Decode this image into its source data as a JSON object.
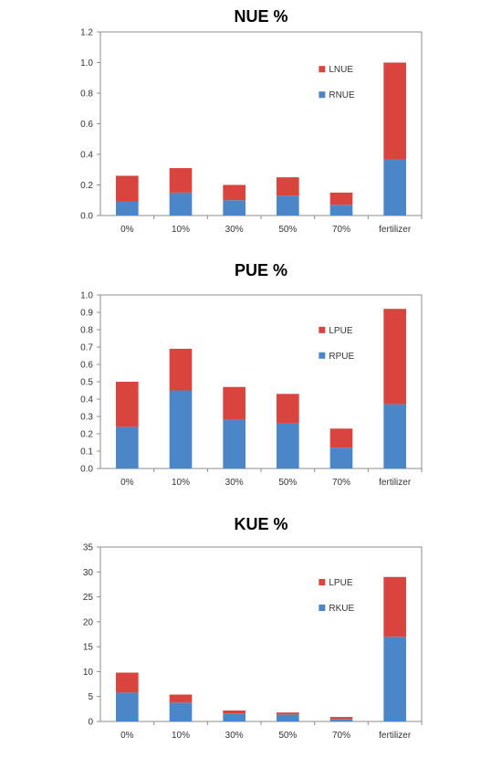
{
  "chart_data": [
    {
      "type": "bar",
      "stacked": true,
      "title": "NUE %",
      "categories": [
        "0%",
        "10%",
        "30%",
        "50%",
        "70%",
        "fertilizer"
      ],
      "ylim": [
        0,
        1.2
      ],
      "yticks": [
        "0.0",
        "0.2",
        "0.4",
        "0.6",
        "0.8",
        "1.0",
        "1.2"
      ],
      "legend_position": "top-right",
      "series": [
        {
          "name": "RNUE",
          "color": "#4a86c8",
          "values": [
            0.09,
            0.15,
            0.1,
            0.13,
            0.07,
            0.37
          ]
        },
        {
          "name": "LNUE",
          "color": "#d9443e",
          "values": [
            0.17,
            0.16,
            0.1,
            0.12,
            0.08,
            0.63
          ]
        }
      ]
    },
    {
      "type": "bar",
      "stacked": true,
      "title": "PUE %",
      "categories": [
        "0%",
        "10%",
        "30%",
        "50%",
        "70%",
        "fertilizer"
      ],
      "ylim": [
        0,
        1.0
      ],
      "yticks": [
        "0.0",
        "0.1",
        "0.2",
        "0.3",
        "0.4",
        "0.5",
        "0.6",
        "0.7",
        "0.8",
        "0.9",
        "1.0"
      ],
      "legend_position": "top-right",
      "series": [
        {
          "name": "RPUE",
          "color": "#4a86c8",
          "values": [
            0.24,
            0.45,
            0.28,
            0.26,
            0.12,
            0.37
          ]
        },
        {
          "name": "LPUE",
          "color": "#d9443e",
          "values": [
            0.26,
            0.24,
            0.19,
            0.17,
            0.11,
            0.55
          ]
        }
      ]
    },
    {
      "type": "bar",
      "stacked": true,
      "title": "KUE %",
      "categories": [
        "0%",
        "10%",
        "30%",
        "50%",
        "70%",
        "fertilizer"
      ],
      "ylim": [
        0,
        35
      ],
      "yticks": [
        "0",
        "5",
        "10",
        "15",
        "20",
        "25",
        "30",
        "35"
      ],
      "legend_position": "top-right",
      "series": [
        {
          "name": "RKUE",
          "color": "#4a86c8",
          "values": [
            5.8,
            3.8,
            1.6,
            1.4,
            0.5,
            17.0
          ]
        },
        {
          "name": "LPUE",
          "color": "#d9443e",
          "values": [
            4.0,
            1.6,
            0.6,
            0.4,
            0.4,
            12.0
          ]
        }
      ]
    }
  ]
}
